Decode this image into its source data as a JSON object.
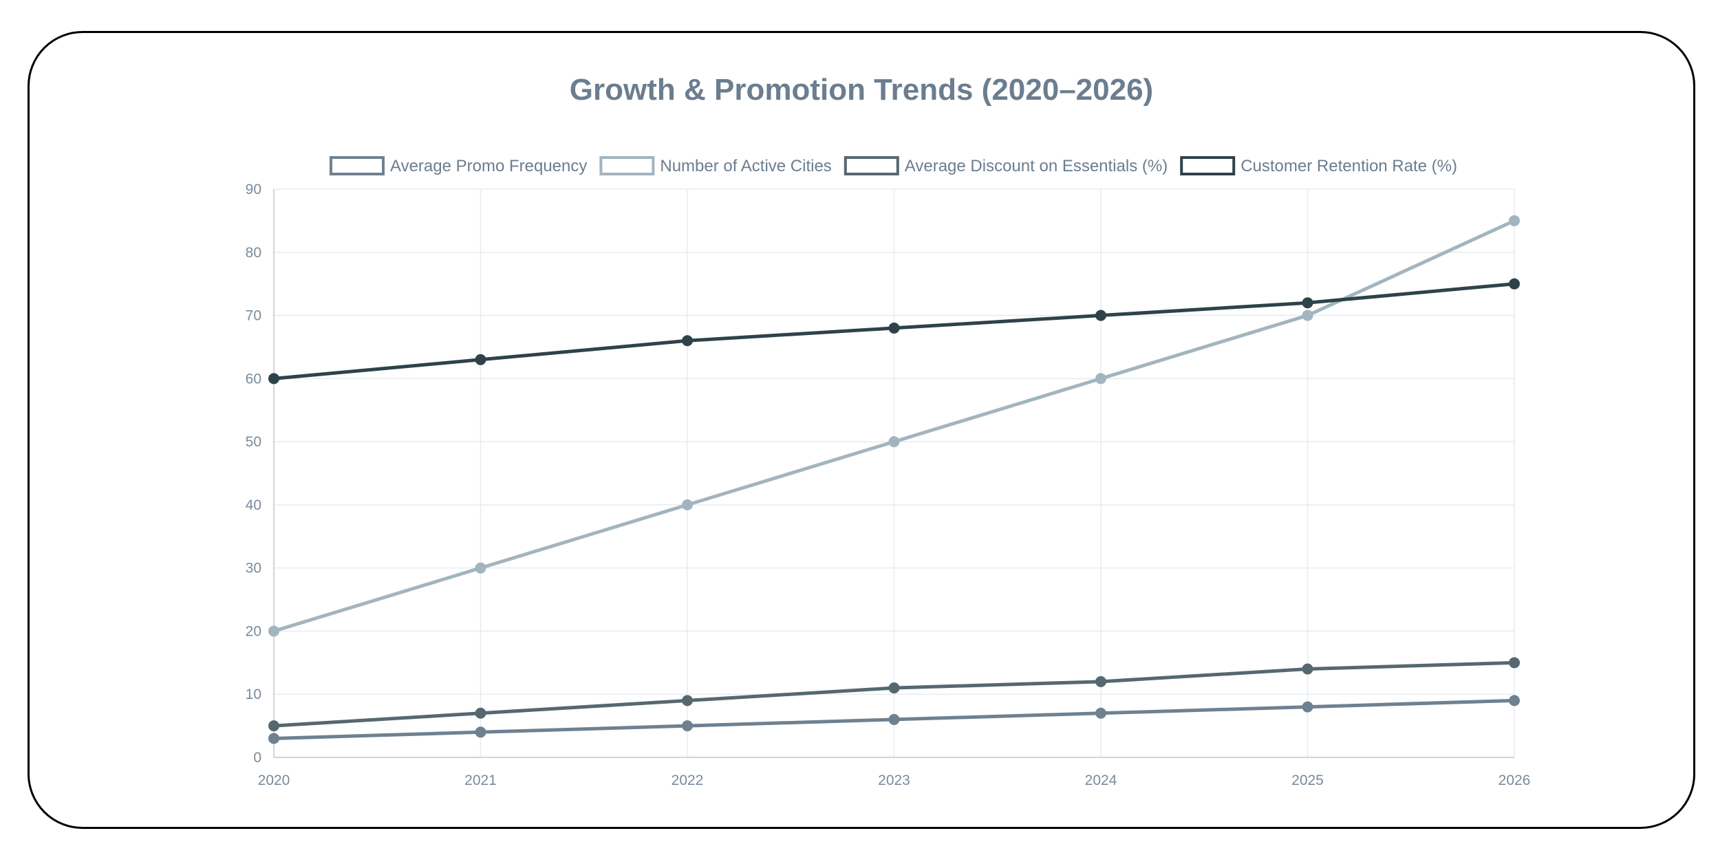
{
  "chart_data": {
    "type": "line",
    "title": "Growth & Promotion Trends (2020–2026)",
    "xlabel": "",
    "ylabel": "",
    "x": [
      "2020",
      "2021",
      "2022",
      "2023",
      "2024",
      "2025",
      "2026"
    ],
    "ylim": [
      0,
      90
    ],
    "yticks": [
      0,
      10,
      20,
      30,
      40,
      50,
      60,
      70,
      80,
      90
    ],
    "grid": true,
    "legend_position": "top",
    "series": [
      {
        "name": "Average Promo Frequency",
        "color": "#6e8191",
        "values": [
          3,
          4,
          5,
          6,
          7,
          8,
          9
        ]
      },
      {
        "name": "Number of Active Cities",
        "color": "#a2b5bf",
        "values": [
          20,
          30,
          40,
          50,
          60,
          70,
          85
        ]
      },
      {
        "name": "Average Discount on Essentials (%)",
        "color": "#56686f",
        "values": [
          5,
          7,
          9,
          11,
          12,
          14,
          15
        ]
      },
      {
        "name": "Customer Retention Rate (%)",
        "color": "#2e4349",
        "values": [
          60,
          63,
          66,
          68,
          70,
          72,
          75
        ]
      }
    ]
  }
}
